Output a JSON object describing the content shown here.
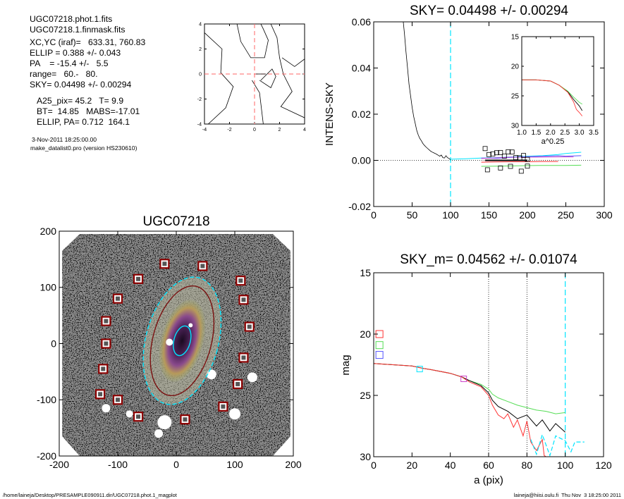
{
  "header": {
    "lines_a": [
      "UGC07218.phot.1.fits",
      "UGC07218.1.finmask.fits"
    ],
    "lines_b": [
      "XC,YC (iraf)=   633.31, 760.83",
      "ELLIP = 0.388 +/- 0.043",
      "PA    = -15.4 +/-   5.5",
      "range=   60.-   80.",
      "SKY= 0.04498 +/- 0.00294"
    ],
    "lines_c": [
      "A25_pix= 45.2   T= 9.9",
      "BT=  14.85   MABS=-17.01",
      "ELLIP, PA= 0.712  164.1"
    ],
    "date": "3-Nov-2011 18:25:00.00",
    "program": "make_datalist0.pro (version HS230610)"
  },
  "footer": {
    "path": "/home/laineja/Desktop/PRESAMPLE090911.dir/UGC07218.phot.1_magplot",
    "user": "laineja@hiisi.oulu.fi  Thu Nov  3 18:25:00 2011"
  },
  "colors": {
    "cyan": "#00e5ff",
    "red": "#ff3333",
    "green": "#55dd55",
    "blue": "#5555ff",
    "magenta": "#cc44cc",
    "maroon": "#7a1010",
    "pink": "#ff7777"
  },
  "chart_data": [
    {
      "id": "center-contour",
      "type": "line",
      "title": "",
      "xlabel": "",
      "ylabel": "",
      "xlim": [
        -4,
        4
      ],
      "ylim": [
        -4,
        4
      ],
      "xticks": [
        "-4",
        "-2",
        "0",
        "2",
        "4"
      ],
      "yticks": [
        "4",
        "2",
        "0",
        "-2",
        "-4"
      ],
      "series": [
        {
          "x": [
            -3.7,
            -2.3,
            -1.7,
            -2.7,
            -2.6,
            -4.0
          ],
          "y": [
            -4.0,
            -2.7,
            -1.0,
            0.1,
            2.0,
            3.3
          ]
        },
        {
          "x": [
            -1.4,
            -1.1,
            -0.3,
            0.8,
            1.1,
            0.7,
            0.5
          ],
          "y": [
            4.0,
            2.6,
            1.3,
            1.3,
            2.7,
            3.6,
            4.0
          ]
        },
        {
          "x": [
            1.3,
            1.8,
            2.0,
            2.3,
            3.0,
            2.1,
            4.0
          ],
          "y": [
            4.0,
            2.9,
            1.3,
            0.0,
            -1.4,
            -2.6,
            -3.5
          ]
        },
        {
          "x": [
            0.4,
            1.3,
            1.7,
            1.4,
            0.5
          ],
          "y": [
            -0.5,
            -1.1,
            -0.2,
            0.4,
            -0.5
          ]
        },
        {
          "x": [
            2.2,
            3.2,
            4.0
          ],
          "y": [
            1.3,
            0.6,
            1.2
          ]
        },
        {
          "x": [
            -0.2,
            0.4,
            0.7
          ],
          "y": [
            -0.5,
            -1.5,
            -4.0
          ]
        }
      ],
      "crosshair_x": 0,
      "crosshair_y": 0
    },
    {
      "id": "galaxy-image",
      "type": "scatter",
      "title": "UGC07218",
      "xlabel": "",
      "ylabel": "",
      "xlim": [
        -200,
        200
      ],
      "ylim": [
        -200,
        200
      ],
      "xticks": [
        "-200",
        "-100",
        "0",
        "100",
        "200"
      ],
      "yticks": [
        "200",
        "100",
        "0",
        "-100",
        "-200"
      ],
      "star_boxes": {
        "x": [
          -20,
          45,
          -65,
          110,
          -100,
          115,
          -120,
          125,
          -120,
          -125,
          115,
          -100,
          105,
          -130,
          80,
          -65,
          15
        ],
        "y": [
          142,
          138,
          115,
          112,
          80,
          78,
          40,
          30,
          0,
          -45,
          -25,
          -100,
          -72,
          -90,
          -112,
          -130,
          -135
        ]
      },
      "ellipses": [
        {
          "color": "cyan",
          "a": 62,
          "b": 116,
          "pa_deg": -15,
          "dash": true
        },
        {
          "color": "maroon",
          "a": 50,
          "b": 100,
          "pa_deg": -15,
          "dash": false
        },
        {
          "color": "cyan",
          "a": 14,
          "b": 27,
          "pa_deg": -15,
          "dash": false
        }
      ]
    },
    {
      "id": "intens-sky",
      "type": "line",
      "title": "SKY= 0.04498 +/- 0.00294",
      "xlabel": "",
      "ylabel": "INTENS-SKY",
      "xlim": [
        0,
        300
      ],
      "ylim": [
        -0.02,
        0.06
      ],
      "xticks": [
        "0",
        "50",
        "100",
        "150",
        "200",
        "250",
        "300"
      ],
      "yticks": [
        "0.06",
        "0.04",
        "0.02",
        "0.00",
        "-0.02"
      ],
      "sky_line": 100,
      "series": [
        {
          "color": "black",
          "x": [
            37,
            40,
            42,
            44,
            46,
            48,
            50,
            52,
            54,
            56,
            58,
            60,
            62,
            64,
            66,
            68,
            70,
            72,
            74,
            76,
            78,
            80,
            82,
            84,
            86,
            88,
            90,
            92,
            94,
            96,
            98,
            100
          ],
          "y": [
            0.065,
            0.055,
            0.047,
            0.04,
            0.033,
            0.028,
            0.023,
            0.019,
            0.016,
            0.013,
            0.011,
            0.0095,
            0.0085,
            0.0073,
            0.0065,
            0.0058,
            0.0052,
            0.0046,
            0.004,
            0.0036,
            0.0033,
            0.003,
            0.0026,
            0.0022,
            0.0018,
            0.0023,
            0.0012,
            0.001,
            0.002,
            0.0012,
            0.0008,
            0.0003
          ]
        },
        {
          "color": "cyan",
          "x": [
            100,
            120,
            140,
            160,
            180,
            200,
            220,
            240,
            250,
            270
          ],
          "y": [
            0.0005,
            0.0007,
            0.001,
            0.0012,
            0.0015,
            0.0018,
            0.002,
            0.0025,
            0.003,
            0.0035
          ]
        },
        {
          "color": "blue",
          "x": [
            140,
            160,
            180,
            200,
            220,
            240,
            250,
            270
          ],
          "y": [
            0.001,
            0.0009,
            0.0013,
            0.0016,
            0.0018,
            0.002,
            0.0018,
            0.002
          ]
        },
        {
          "color": "magenta",
          "x": [
            140,
            160,
            180,
            200,
            220,
            240,
            260
          ],
          "y": [
            0.0008,
            0.0011,
            0.0014,
            0.0014,
            0.0014,
            0.0015,
            0.0015
          ]
        },
        {
          "color": "green",
          "x": [
            140,
            160,
            180,
            200,
            220,
            240,
            250,
            270
          ],
          "y": [
            -0.0026,
            -0.0025,
            -0.0024,
            -0.0023,
            -0.0022,
            -0.0022,
            -0.0022,
            -0.0021
          ]
        },
        {
          "color": "red",
          "x": [
            140,
            160,
            180,
            200,
            220,
            240
          ],
          "y": [
            -0.0008,
            -0.0007,
            -0.0006,
            -0.0006,
            -0.0005,
            -0.0005
          ]
        }
      ],
      "black_segment": {
        "x": [
          145,
          200
        ],
        "y": [
          0.0,
          0.0
        ]
      },
      "squares": {
        "x": [
          145,
          150,
          155,
          160,
          165,
          170,
          175,
          180,
          185,
          190,
          195,
          200,
          200,
          148,
          165,
          178,
          192
        ],
        "y": [
          0.0051,
          0.0025,
          0.0028,
          0.0033,
          0.0034,
          0.0018,
          0.0037,
          0.0036,
          0.0012,
          0.0011,
          0.0021,
          0.0004,
          -0.0025,
          -0.0041,
          -0.0033,
          -0.0026,
          -0.0047
        ]
      },
      "inset": {
        "xlabel": "a^0.25",
        "xlim": [
          1.0,
          3.5
        ],
        "ylim": [
          15,
          30
        ],
        "xticks": [
          "1.0",
          "1.5",
          "2.0",
          "2.5",
          "3.0",
          "3.5"
        ],
        "yticks": [
          "15",
          "20",
          "25",
          "30"
        ],
        "series": [
          {
            "color": "black",
            "x": [
              1.0,
              1.5,
              2.0,
              2.3,
              2.6,
              2.8,
              3.0,
              3.1
            ],
            "y": [
              22.3,
              22.3,
              22.5,
              23.2,
              24.3,
              25.6,
              26.7,
              27.5
            ]
          },
          {
            "color": "green",
            "x": [
              1.0,
              1.5,
              2.0,
              2.3,
              2.6,
              2.8,
              3.0,
              3.1
            ],
            "y": [
              22.3,
              22.3,
              22.5,
              23.2,
              24.2,
              25.2,
              26.1,
              26.4
            ]
          },
          {
            "color": "red",
            "x": [
              1.0,
              1.5,
              2.0,
              2.3,
              2.6,
              2.8,
              2.9,
              3.0,
              3.1
            ],
            "y": [
              22.3,
              22.3,
              22.5,
              23.2,
              24.4,
              26.0,
              27.3,
              27.8,
              28.4
            ]
          }
        ]
      }
    },
    {
      "id": "mag-profile",
      "type": "line",
      "title": "SKY_m=  0.04562 +/- 0.01074",
      "xlabel": "a (pix)",
      "ylabel": "mag",
      "xlim": [
        0,
        120
      ],
      "ylim": [
        15,
        30
      ],
      "xticks": [
        "0",
        "20",
        "40",
        "60",
        "80",
        "100",
        "120"
      ],
      "yticks": [
        "15",
        "20",
        "25",
        "30"
      ],
      "vlines_dotted": [
        60,
        80
      ],
      "vline_cyan": 100,
      "legend_squares": [
        {
          "color": "red",
          "x": 3,
          "y": 20.0
        },
        {
          "color": "green",
          "x": 3,
          "y": 20.9
        },
        {
          "color": "blue",
          "x": 3,
          "y": 21.7
        }
      ],
      "series": [
        {
          "color": "green",
          "x": [
            0,
            10,
            20,
            26,
            30,
            40,
            46,
            50,
            56,
            60,
            62,
            65,
            70,
            75,
            80,
            85,
            90,
            95,
            100
          ],
          "y": [
            22.4,
            22.5,
            22.6,
            22.8,
            22.9,
            23.2,
            23.5,
            23.8,
            24.1,
            24.5,
            24.9,
            25.2,
            25.5,
            25.8,
            26.0,
            26.2,
            26.3,
            26.5,
            26.4
          ]
        },
        {
          "color": "black",
          "x": [
            0,
            10,
            20,
            26,
            30,
            40,
            46,
            50,
            56,
            60,
            62,
            65,
            70,
            75,
            80,
            85,
            88,
            92,
            95,
            100
          ],
          "y": [
            22.4,
            22.5,
            22.6,
            22.8,
            22.9,
            23.2,
            23.5,
            23.8,
            24.2,
            24.8,
            25.4,
            25.9,
            26.3,
            26.9,
            26.6,
            27.5,
            27.0,
            27.9,
            27.3,
            28.0
          ]
        },
        {
          "color": "red",
          "x": [
            0,
            10,
            20,
            26,
            30,
            40,
            46,
            50,
            56,
            60,
            62,
            65,
            68,
            70,
            73,
            75,
            78,
            80,
            82,
            85,
            88,
            89,
            90
          ],
          "y": [
            22.4,
            22.5,
            22.6,
            22.8,
            22.9,
            23.2,
            23.5,
            23.9,
            24.3,
            25.0,
            25.8,
            26.6,
            26.9,
            26.5,
            27.6,
            27.0,
            28.3,
            27.1,
            28.8,
            29.5,
            28.6,
            29.9,
            30.0
          ]
        },
        {
          "color": "cyan",
          "x": [
            82,
            85,
            88,
            92,
            95,
            100,
            103,
            105,
            110
          ],
          "y": [
            28.6,
            29.8,
            28.2,
            29.9,
            28.3,
            28.7,
            29.6,
            28.8,
            28.8
          ]
        }
      ],
      "squares": [
        {
          "color": "cyan",
          "x": 24,
          "y": 22.85
        },
        {
          "color": "magenta",
          "x": 47,
          "y": 23.65
        }
      ]
    }
  ]
}
